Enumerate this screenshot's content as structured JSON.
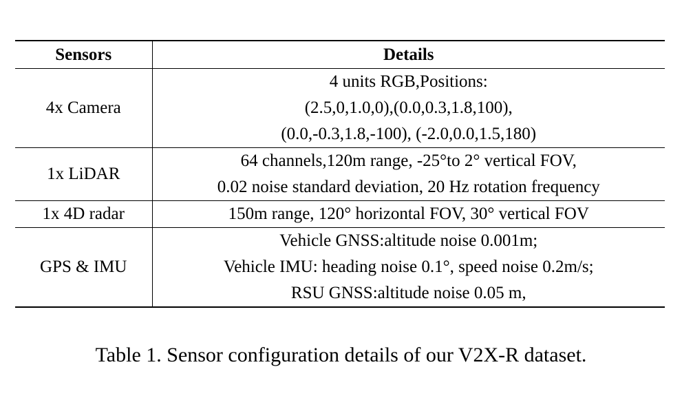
{
  "table": {
    "headers": [
      "Sensors",
      "Details"
    ],
    "rows": [
      {
        "sensor": "4x Camera",
        "details": [
          "4 units RGB,Positions:",
          "(2.5,0,1.0,0),(0.0,0.3,1.8,100),",
          "(0.0,-0.3,1.8,-100), (-2.0,0.0,1.5,180)"
        ]
      },
      {
        "sensor": "1x LiDAR",
        "details": [
          "64 channels,120m range, -25°to 2° vertical FOV,",
          "0.02 noise standard deviation, 20 Hz rotation frequency"
        ]
      },
      {
        "sensor": "1x 4D radar",
        "details": [
          "150m range, 120° horizontal FOV, 30° vertical FOV"
        ]
      },
      {
        "sensor": "GPS & IMU",
        "details": [
          "Vehicle GNSS:altitude noise 0.001m;",
          "Vehicle IMU: heading noise 0.1°, speed noise 0.2m/s;",
          "RSU GNSS:altitude noise 0.05 m,"
        ]
      }
    ]
  },
  "caption": "Table 1. Sensor configuration details of our V2X-R dataset."
}
